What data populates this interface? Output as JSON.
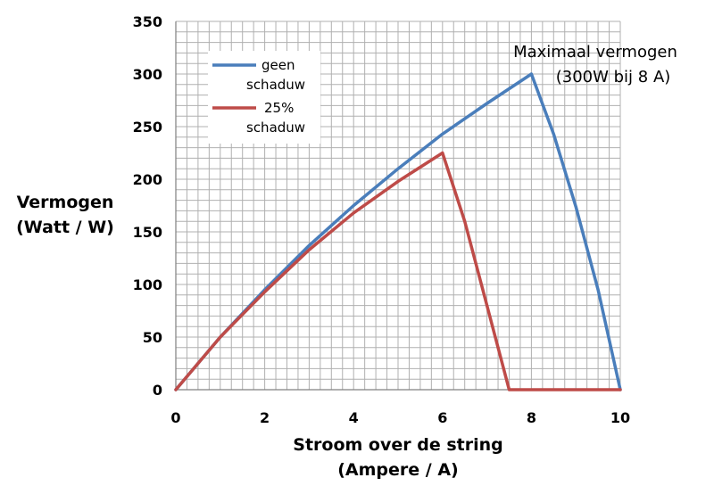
{
  "chart_data": {
    "type": "line",
    "xlabel_line1": "Stroom over de string",
    "xlabel_line2": "(Ampere / A)",
    "ylabel_line1": "Vermogen",
    "ylabel_line2": "(Watt / W)",
    "xlim": [
      0,
      10
    ],
    "ylim": [
      0,
      350
    ],
    "x_ticks": [
      "0",
      "2",
      "4",
      "6",
      "8",
      "10"
    ],
    "y_ticks": [
      "0",
      "50",
      "100",
      "150",
      "200",
      "250",
      "300",
      "350"
    ],
    "grid": true,
    "legend_position": "top-left",
    "series": [
      {
        "name_line1": "geen",
        "name_line2": "schaduw",
        "color": "#4a7ebb",
        "x": [
          0,
          1,
          2,
          3,
          4,
          5,
          6,
          7,
          8,
          8.5,
          9,
          9.5,
          10
        ],
        "y": [
          0,
          50,
          95,
          137,
          175,
          210,
          243,
          272,
          300,
          243,
          174,
          95,
          0
        ]
      },
      {
        "name_line1": "25%",
        "name_line2": "schaduw",
        "color": "#be4b48",
        "x": [
          0,
          1,
          2,
          3,
          4,
          5,
          6,
          6.5,
          7,
          7.5,
          8,
          9,
          10
        ],
        "y": [
          0,
          50,
          93,
          133,
          168,
          198,
          225,
          160,
          80,
          0,
          0,
          0,
          0
        ]
      }
    ],
    "annotation_line1": "Maximaal vermogen",
    "annotation_line2": "(300W bij 8 A)"
  }
}
